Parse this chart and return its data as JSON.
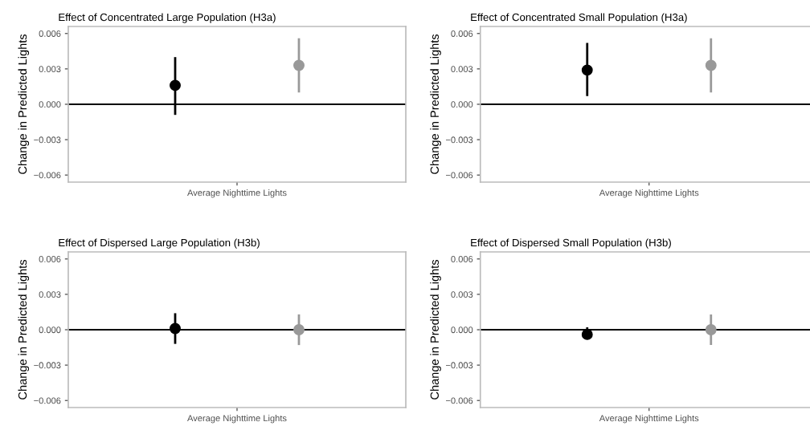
{
  "chart_data": [
    {
      "type": "scatter",
      "title": "Effect of Concentrated Large Population (H3a)",
      "ylabel": "Change in Predicted Lights",
      "categories": [
        "Average Nighttime Lights"
      ],
      "ylim": [
        -0.0066,
        0.0066
      ],
      "yticks": [
        {
          "value": -0.006,
          "label": "−0.006"
        },
        {
          "value": -0.003,
          "label": "−0.003"
        },
        {
          "value": 0,
          "label": "0.000"
        },
        {
          "value": 0.003,
          "label": "0.003"
        },
        {
          "value": 0.006,
          "label": "0.006"
        }
      ],
      "grid": false,
      "marker": "circle",
      "ref_lines": [
        {
          "axis": "y",
          "value": 0,
          "color": "#000000"
        }
      ],
      "series": [
        {
          "color": "#000000",
          "values": [
            0.0016
          ],
          "errors": [
            [
              -0.0009,
              0.004
            ]
          ]
        },
        {
          "color": "#999999",
          "values": [
            0.0033
          ],
          "errors": [
            [
              0.001,
              0.0056
            ]
          ]
        }
      ]
    },
    {
      "type": "scatter",
      "title": "Effect of Concentrated Small Population (H3a)",
      "ylabel": "Change in Predicted Lights",
      "categories": [
        "Average Nighttime Lights"
      ],
      "ylim": [
        -0.0066,
        0.0066
      ],
      "yticks": [
        {
          "value": -0.006,
          "label": "−0.006"
        },
        {
          "value": -0.003,
          "label": "−0.003"
        },
        {
          "value": 0,
          "label": "0.000"
        },
        {
          "value": 0.003,
          "label": "0.003"
        },
        {
          "value": 0.006,
          "label": "0.006"
        }
      ],
      "grid": false,
      "marker": "circle",
      "ref_lines": [
        {
          "axis": "y",
          "value": 0,
          "color": "#000000"
        }
      ],
      "series": [
        {
          "color": "#000000",
          "values": [
            0.0029
          ],
          "errors": [
            [
              0.0007,
              0.0052
            ]
          ]
        },
        {
          "color": "#999999",
          "values": [
            0.0033
          ],
          "errors": [
            [
              0.001,
              0.0056
            ]
          ]
        }
      ]
    },
    {
      "type": "scatter",
      "title": "Effect of Dispersed Large Population (H3b)",
      "ylabel": "Change in Predicted Lights",
      "categories": [
        "Average Nighttime Lights"
      ],
      "ylim": [
        -0.0066,
        0.0066
      ],
      "yticks": [
        {
          "value": -0.006,
          "label": "−0.006"
        },
        {
          "value": -0.003,
          "label": "−0.003"
        },
        {
          "value": 0,
          "label": "0.000"
        },
        {
          "value": 0.003,
          "label": "0.003"
        },
        {
          "value": 0.006,
          "label": "0.006"
        }
      ],
      "grid": false,
      "marker": "circle",
      "ref_lines": [
        {
          "axis": "y",
          "value": 0,
          "color": "#000000"
        }
      ],
      "series": [
        {
          "color": "#000000",
          "values": [
            0.0001
          ],
          "errors": [
            [
              -0.0012,
              0.0014
            ]
          ]
        },
        {
          "color": "#999999",
          "values": [
            0.0
          ],
          "errors": [
            [
              -0.0013,
              0.0013
            ]
          ]
        }
      ]
    },
    {
      "type": "scatter",
      "title": "Effect of Dispersed Small Population (H3b)",
      "ylabel": "Change in Predicted Lights",
      "categories": [
        "Average Nighttime Lights"
      ],
      "ylim": [
        -0.0066,
        0.0066
      ],
      "yticks": [
        {
          "value": -0.006,
          "label": "−0.006"
        },
        {
          "value": -0.003,
          "label": "−0.003"
        },
        {
          "value": 0,
          "label": "0.000"
        },
        {
          "value": 0.003,
          "label": "0.003"
        },
        {
          "value": 0.006,
          "label": "0.006"
        }
      ],
      "grid": false,
      "marker": "circle",
      "ref_lines": [
        {
          "axis": "y",
          "value": 0,
          "color": "#000000"
        }
      ],
      "series": [
        {
          "color": "#000000",
          "values": [
            -0.0004
          ],
          "errors": [
            [
              -0.0008,
              0.0002
            ]
          ]
        },
        {
          "color": "#999999",
          "values": [
            0.0
          ],
          "errors": [
            [
              -0.0013,
              0.0013
            ]
          ]
        }
      ]
    }
  ]
}
